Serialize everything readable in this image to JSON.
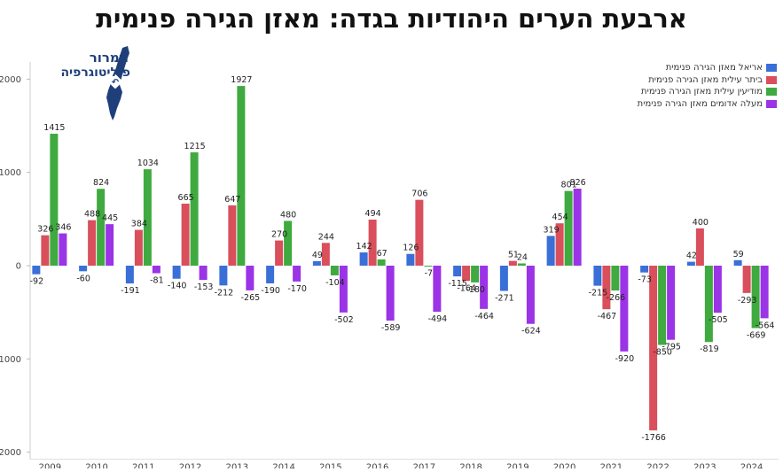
{
  "title": "ארבעת הערים היהודיות בגדה: מאזן הגירה פנימית",
  "logo": {
    "line1": "תמרור",
    "line2": "פוליטוגרפיה",
    "sign": "↶"
  },
  "chart_data": {
    "type": "bar",
    "categories": [
      "2009",
      "2010",
      "2011",
      "2012",
      "2013",
      "2014",
      "2015",
      "2016",
      "2017",
      "2018",
      "2019",
      "2020",
      "2021",
      "2022",
      "2023",
      "2024"
    ],
    "ylim": [
      -2000,
      2200
    ],
    "yticks": [
      -2000,
      -1000,
      0,
      1000,
      2000
    ],
    "ytick_labels": [
      "-2000",
      "-1000",
      "0",
      "1000",
      "2000"
    ],
    "grid": false,
    "legend_position": "top-right",
    "series": [
      {
        "name": "אריאל מאזן הגירה פנימית",
        "color": "#3a6fd8",
        "values": [
          -92,
          -60,
          -191,
          -140,
          -212,
          -190,
          49,
          142,
          126,
          -115,
          -271,
          319,
          -215,
          -73,
          42,
          59
        ]
      },
      {
        "name": "ביתר עילית מאזן הגירה פנימית",
        "color": "#d94f5c",
        "values": [
          326,
          488,
          384,
          665,
          647,
          270,
          244,
          494,
          706,
          -164,
          51,
          454,
          -467,
          -1766,
          400,
          -293
        ]
      },
      {
        "name": "מודיעין עילית מאזן הגירה פנימית",
        "color": "#3faa3f",
        "values": [
          1415,
          824,
          1034,
          1215,
          1927,
          480,
          -104,
          67,
          -7,
          -180,
          24,
          801,
          -266,
          -850,
          -819,
          -669
        ]
      },
      {
        "name": "מעלה אדומים מאזן הגירה פנימית",
        "color": "#9b33e6",
        "values": [
          346,
          445,
          -81,
          -153,
          -265,
          -170,
          -502,
          -589,
          -494,
          -464,
          -624,
          826,
          -920,
          -795,
          -505,
          -564
        ]
      }
    ]
  }
}
